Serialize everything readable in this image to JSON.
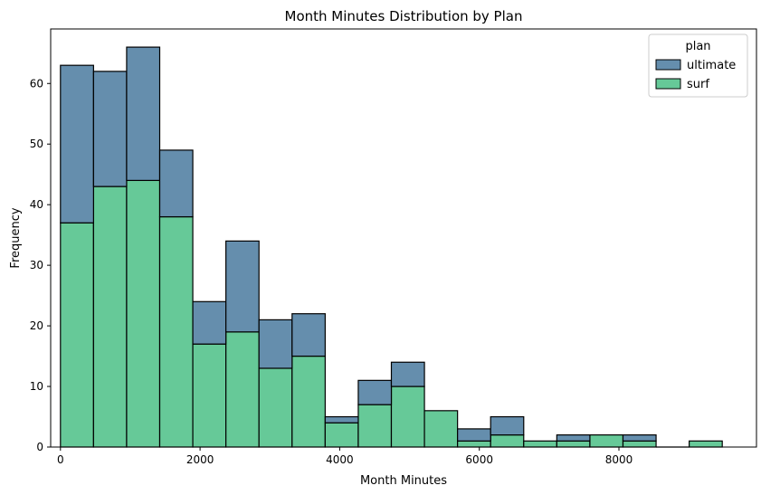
{
  "chart_data": {
    "type": "bar",
    "title": "Month Minutes Distribution by Plan",
    "xlabel": "Month Minutes",
    "ylabel": "Frequency",
    "xlim": [
      -140,
      9970
    ],
    "ylim": [
      0,
      69
    ],
    "x_ticks": [
      0,
      2000,
      4000,
      6000,
      8000
    ],
    "y_ticks": [
      0,
      10,
      20,
      30,
      40,
      50,
      60
    ],
    "bin_edges": [
      0,
      474,
      948,
      1422,
      1896,
      2370,
      2844,
      3318,
      3792,
      4266,
      4740,
      5214,
      5688,
      6162,
      6636,
      7110,
      7584,
      8058,
      8532,
      9006,
      9480
    ],
    "stacked": true,
    "series": [
      {
        "name": "surf",
        "color": "#66c998",
        "values": [
          37,
          43,
          44,
          38,
          17,
          19,
          13,
          15,
          4,
          7,
          10,
          6,
          1,
          2,
          1,
          1,
          2,
          1,
          0,
          1
        ]
      },
      {
        "name": "ultimate",
        "color": "#658ead",
        "values": [
          26,
          19,
          22,
          11,
          7,
          15,
          8,
          7,
          1,
          4,
          4,
          0,
          2,
          3,
          0,
          1,
          0,
          1,
          0,
          0
        ]
      }
    ],
    "legend": {
      "title": "plan",
      "position": "top-right",
      "entries": [
        {
          "label": "ultimate",
          "color": "#658ead"
        },
        {
          "label": "surf",
          "color": "#66c998"
        }
      ]
    },
    "grid": false
  }
}
